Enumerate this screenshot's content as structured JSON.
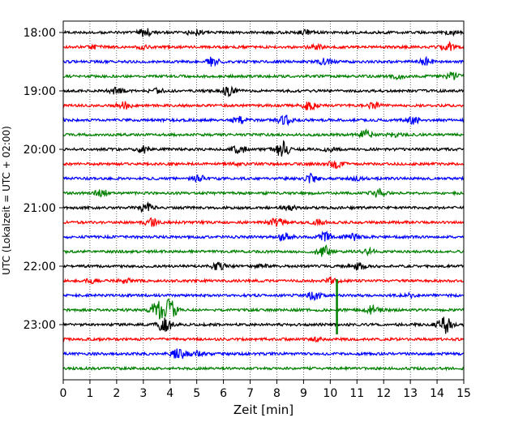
{
  "chart_data": {
    "type": "line",
    "title": "",
    "xlabel": "Zeit  [min]",
    "ylabel": "UTC (Lokalzeit = UTC + 02:00)",
    "xlim": [
      0,
      15
    ],
    "x_ticks": [
      "0",
      "1",
      "2",
      "3",
      "4",
      "5",
      "6",
      "7",
      "8",
      "9",
      "10",
      "11",
      "12",
      "13",
      "14",
      "15"
    ],
    "y_ticks": [
      "18:00",
      "19:00",
      "20:00",
      "21:00",
      "22:00",
      "23:00"
    ],
    "grid": "vertical dotted",
    "colors": [
      "#000000",
      "#ff0000",
      "#0000ff",
      "#008000"
    ],
    "trace_interval_min": 15,
    "first_trace_start": "18:00",
    "traces": [
      {
        "start": "18:00",
        "color": "#000000",
        "events": [
          [
            3.1,
            5
          ],
          [
            4.9,
            3.5
          ],
          [
            9.1,
            2.5
          ],
          [
            14.6,
            2
          ]
        ]
      },
      {
        "start": "18:15",
        "color": "#ff0000",
        "events": [
          [
            1.2,
            2
          ],
          [
            3.0,
            1.5
          ],
          [
            9.4,
            3.5
          ],
          [
            14.4,
            5
          ]
        ]
      },
      {
        "start": "18:30",
        "color": "#0000ff",
        "events": [
          [
            5.6,
            5
          ],
          [
            9.8,
            3.5
          ],
          [
            13.6,
            4
          ]
        ]
      },
      {
        "start": "18:45",
        "color": "#008000",
        "events": [
          [
            12.5,
            2.5
          ],
          [
            14.6,
            4
          ]
        ]
      },
      {
        "start": "19:00",
        "color": "#000000",
        "events": [
          [
            2.0,
            3.5
          ],
          [
            3.5,
            2.5
          ],
          [
            6.2,
            5
          ]
        ]
      },
      {
        "start": "19:15",
        "color": "#ff0000",
        "events": [
          [
            2.3,
            4
          ],
          [
            9.2,
            5
          ],
          [
            11.6,
            3
          ]
        ]
      },
      {
        "start": "19:30",
        "color": "#0000ff",
        "events": [
          [
            6.6,
            4
          ],
          [
            8.3,
            5
          ],
          [
            13.1,
            4
          ]
        ]
      },
      {
        "start": "19:45",
        "color": "#008000",
        "events": [
          [
            11.3,
            5
          ],
          [
            12.4,
            2
          ]
        ]
      },
      {
        "start": "20:00",
        "color": "#000000",
        "events": [
          [
            3.0,
            4
          ],
          [
            6.6,
            5
          ],
          [
            8.2,
            9
          ],
          [
            10.0,
            2
          ]
        ]
      },
      {
        "start": "20:15",
        "color": "#ff0000",
        "events": [
          [
            6.5,
            1.5
          ],
          [
            10.2,
            4
          ]
        ]
      },
      {
        "start": "20:30",
        "color": "#0000ff",
        "events": [
          [
            5.1,
            4
          ],
          [
            9.3,
            5
          ],
          [
            11.0,
            2
          ]
        ]
      },
      {
        "start": "20:45",
        "color": "#008000",
        "events": [
          [
            1.4,
            5
          ],
          [
            11.8,
            5
          ]
        ]
      },
      {
        "start": "21:00",
        "color": "#000000",
        "events": [
          [
            3.1,
            5
          ],
          [
            8.5,
            2
          ]
        ]
      },
      {
        "start": "21:15",
        "color": "#ff0000",
        "events": [
          [
            3.3,
            4
          ],
          [
            8.0,
            4.5
          ],
          [
            9.6,
            3
          ]
        ]
      },
      {
        "start": "21:30",
        "color": "#0000ff",
        "events": [
          [
            8.3,
            5
          ],
          [
            9.8,
            5
          ],
          [
            10.8,
            4
          ]
        ]
      },
      {
        "start": "21:45",
        "color": "#008000",
        "events": [
          [
            9.7,
            8
          ],
          [
            11.5,
            3
          ]
        ]
      },
      {
        "start": "22:00",
        "color": "#000000",
        "events": [
          [
            5.8,
            4
          ],
          [
            7.4,
            2
          ],
          [
            11.0,
            4
          ]
        ]
      },
      {
        "start": "22:15",
        "color": "#ff0000",
        "events": [
          [
            1.1,
            2.5
          ],
          [
            2.3,
            2.5
          ],
          [
            10.1,
            3
          ]
        ]
      },
      {
        "start": "22:30",
        "color": "#0000ff",
        "events": [
          [
            9.4,
            5
          ],
          [
            13.0,
            2
          ]
        ]
      },
      {
        "start": "22:45",
        "color": "#008000",
        "events": [
          [
            3.5,
            11
          ],
          [
            4.0,
            12
          ],
          [
            11.6,
            5
          ]
        ]
      },
      {
        "start": "23:00",
        "color": "#000000",
        "events": [
          [
            3.8,
            9
          ],
          [
            14.3,
            10
          ]
        ]
      },
      {
        "start": "23:15",
        "color": "#ff0000",
        "events": [
          [
            9.4,
            2
          ]
        ]
      },
      {
        "start": "23:30",
        "color": "#0000ff",
        "events": [
          [
            4.3,
            8
          ],
          [
            5.0,
            3
          ]
        ]
      },
      {
        "start": "23:45",
        "color": "#008000",
        "events": []
      }
    ],
    "spike": {
      "x": 10.25,
      "trace": "22:45"
    }
  }
}
